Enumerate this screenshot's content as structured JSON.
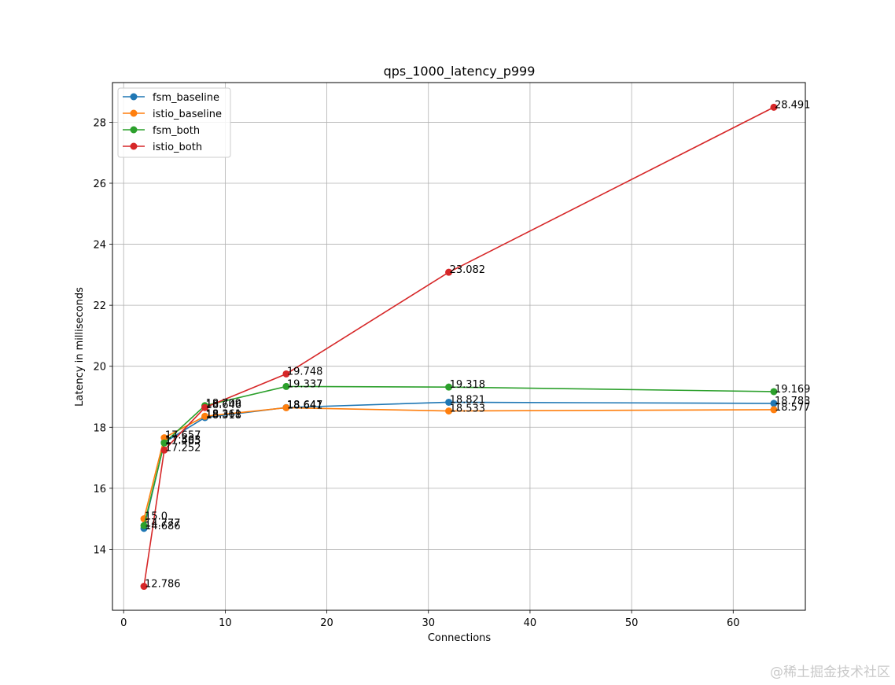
{
  "chart_data": {
    "type": "line",
    "title": "qps_1000_latency_p999",
    "xlabel": "Connections",
    "ylabel": "Latency in milliseconds",
    "xlim": [
      -1.1,
      67.1
    ],
    "ylim": [
      12.0,
      29.3
    ],
    "xticks": [
      0,
      10,
      20,
      30,
      40,
      50,
      60
    ],
    "yticks": [
      14,
      16,
      18,
      20,
      22,
      24,
      26,
      28
    ],
    "grid": true,
    "legend": "top-left",
    "x": [
      2,
      4,
      8,
      16,
      32,
      64
    ],
    "series": [
      {
        "name": "fsm_baseline",
        "color": "#1f77b4",
        "values": [
          14.686,
          17.503,
          18.318,
          18.647,
          18.821,
          18.783
        ],
        "labels": [
          "14.686",
          "17.503",
          "18.318",
          "18.647",
          "18.821",
          "18.783"
        ]
      },
      {
        "name": "istio_baseline",
        "color": "#ff7f0e",
        "values": [
          15.0,
          17.657,
          18.361,
          18.641,
          18.533,
          18.577
        ],
        "labels": [
          "15.0",
          "17.657",
          "18.361",
          "18.641",
          "18.533",
          "18.577"
        ]
      },
      {
        "name": "fsm_both",
        "color": "#2ca02c",
        "values": [
          14.777,
          17.485,
          18.709,
          19.337,
          19.318,
          19.169
        ],
        "labels": [
          "14.777",
          "17.485",
          "18.709",
          "19.337",
          "19.318",
          "19.169"
        ]
      },
      {
        "name": "istio_both",
        "color": "#d62728",
        "values": [
          12.786,
          17.252,
          18.646,
          19.748,
          23.082,
          28.491
        ],
        "labels": [
          "12.786",
          "17.252",
          "18.646",
          "19.748",
          "23.082",
          "28.491"
        ]
      }
    ]
  },
  "watermark": "@稀土掘金技术社区"
}
